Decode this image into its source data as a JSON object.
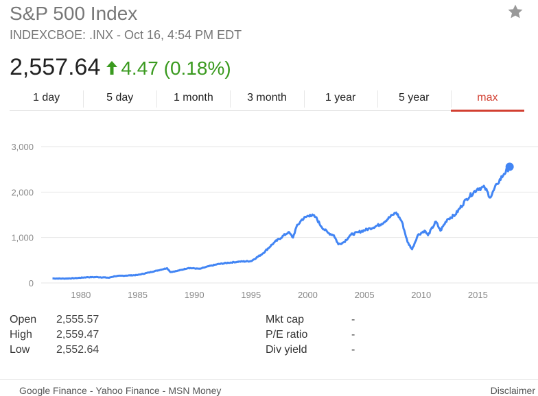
{
  "header": {
    "title": "S&P 500 Index",
    "subtitle": "INDEXCBOE: .INX - Oct 16, 4:54 PM EDT",
    "price": "2,557.64",
    "change": "4.47 (0.18%)",
    "change_color": "#3a9a1f",
    "star_icon": "star-icon"
  },
  "tabs": [
    {
      "label": "1 day"
    },
    {
      "label": "5 day"
    },
    {
      "label": "1 month"
    },
    {
      "label": "3 month"
    },
    {
      "label": "1 year"
    },
    {
      "label": "5 year"
    },
    {
      "label": "max",
      "active": true
    }
  ],
  "chart_data": {
    "type": "line",
    "color": "#4285f4",
    "x_ticks": [
      "1980",
      "1985",
      "1990",
      "1995",
      "2000",
      "2005",
      "2010",
      "2015"
    ],
    "y_ticks": [
      "3,000",
      "2,000",
      "1,000",
      "0"
    ],
    "xlim": [
      1976.5,
      2020.3
    ],
    "ylim": [
      0,
      3000
    ],
    "grid": true,
    "series": [
      {
        "points": [
          [
            1977.5,
            100
          ],
          [
            1978.5,
            96
          ],
          [
            1979.5,
            105
          ],
          [
            1980.5,
            125
          ],
          [
            1981.5,
            128
          ],
          [
            1982.5,
            115
          ],
          [
            1983.0,
            150
          ],
          [
            1984.0,
            162
          ],
          [
            1985.0,
            175
          ],
          [
            1986.0,
            230
          ],
          [
            1987.6,
            325
          ],
          [
            1987.9,
            240
          ],
          [
            1988.5,
            265
          ],
          [
            1989.5,
            330
          ],
          [
            1990.5,
            310
          ],
          [
            1991.0,
            350
          ],
          [
            1992.0,
            410
          ],
          [
            1993.0,
            445
          ],
          [
            1994.0,
            470
          ],
          [
            1995.0,
            480
          ],
          [
            1996.0,
            640
          ],
          [
            1997.0,
            880
          ],
          [
            1998.3,
            1120
          ],
          [
            1998.7,
            1000
          ],
          [
            1999.0,
            1230
          ],
          [
            1999.5,
            1400
          ],
          [
            2000.2,
            1500
          ],
          [
            2000.7,
            1450
          ],
          [
            2001.2,
            1240
          ],
          [
            2001.8,
            1100
          ],
          [
            2002.3,
            1050
          ],
          [
            2002.7,
            850
          ],
          [
            2003.2,
            900
          ],
          [
            2003.8,
            1060
          ],
          [
            2004.5,
            1120
          ],
          [
            2005.5,
            1200
          ],
          [
            2006.5,
            1300
          ],
          [
            2007.5,
            1500
          ],
          [
            2007.8,
            1550
          ],
          [
            2008.3,
            1350
          ],
          [
            2008.8,
            900
          ],
          [
            2009.2,
            740
          ],
          [
            2009.7,
            1050
          ],
          [
            2010.3,
            1150
          ],
          [
            2010.6,
            1050
          ],
          [
            2011.3,
            1350
          ],
          [
            2011.7,
            1150
          ],
          [
            2012.3,
            1400
          ],
          [
            2013.0,
            1500
          ],
          [
            2014.0,
            1850
          ],
          [
            2015.0,
            2080
          ],
          [
            2015.6,
            2100
          ],
          [
            2016.1,
            1880
          ],
          [
            2016.7,
            2180
          ],
          [
            2017.3,
            2400
          ],
          [
            2017.8,
            2557.64
          ]
        ]
      }
    ]
  },
  "stats": {
    "left": [
      {
        "label": "Open",
        "value": "2,555.57"
      },
      {
        "label": "High",
        "value": "2,559.47"
      },
      {
        "label": "Low",
        "value": "2,552.64"
      }
    ],
    "right": [
      {
        "label": "Mkt cap",
        "value": "-"
      },
      {
        "label": "P/E ratio",
        "value": "-"
      },
      {
        "label": "Div yield",
        "value": "-"
      }
    ]
  },
  "footer": {
    "sources": [
      "Google Finance",
      "Yahoo Finance",
      "MSN Money"
    ],
    "separator": "-",
    "disclaimer": "Disclaimer"
  }
}
